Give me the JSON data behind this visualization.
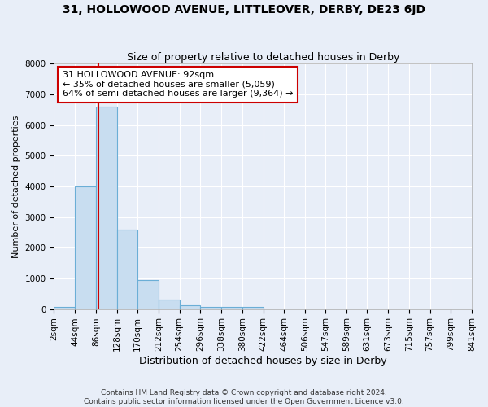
{
  "title": "31, HOLLOWOOD AVENUE, LITTLEOVER, DERBY, DE23 6JD",
  "subtitle": "Size of property relative to detached houses in Derby",
  "xlabel": "Distribution of detached houses by size in Derby",
  "ylabel": "Number of detached properties",
  "bar_edges": [
    2,
    44,
    86,
    128,
    170,
    212,
    254,
    296,
    338,
    380,
    422,
    464,
    506,
    547,
    589,
    631,
    673,
    715,
    757,
    799,
    841
  ],
  "bar_heights": [
    80,
    4000,
    6600,
    2600,
    950,
    300,
    115,
    80,
    80,
    80,
    0,
    0,
    0,
    0,
    0,
    0,
    0,
    0,
    0,
    0
  ],
  "bar_color": "#c8ddf0",
  "bar_edge_color": "#6baed6",
  "bar_linewidth": 0.8,
  "property_line_x": 92,
  "property_line_color": "#cc0000",
  "annotation_text": "31 HOLLOWOOD AVENUE: 92sqm\n← 35% of detached houses are smaller (5,059)\n64% of semi-detached houses are larger (9,364) →",
  "annotation_box_color": "#ffffff",
  "annotation_box_edge_color": "#cc0000",
  "annotation_fontsize": 8,
  "ylim": [
    0,
    8000
  ],
  "yticks": [
    0,
    1000,
    2000,
    3000,
    4000,
    5000,
    6000,
    7000,
    8000
  ],
  "background_color": "#e8eef8",
  "grid_color": "#ffffff",
  "footer_text": "Contains HM Land Registry data © Crown copyright and database right 2024.\nContains public sector information licensed under the Open Government Licence v3.0.",
  "title_fontsize": 10,
  "subtitle_fontsize": 9,
  "xlabel_fontsize": 9,
  "ylabel_fontsize": 8,
  "tick_fontsize": 7.5
}
